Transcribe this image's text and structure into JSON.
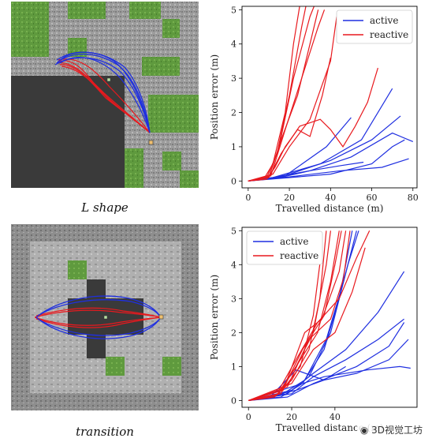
{
  "maps": [
    {
      "caption": "L shape"
    },
    {
      "caption": "transition"
    }
  ],
  "colors": {
    "active": "#1f2fe0",
    "reactive": "#e8191e",
    "grass": "#5f9a3e",
    "gravel": "#9a9a9a",
    "dark": "#3a3a3a"
  },
  "watermark": "3D视觉工坊",
  "chart_data": [
    {
      "type": "line",
      "xlabel": "Travelled distance (m)",
      "ylabel": "Position error (m)",
      "xlim": [
        -3,
        82
      ],
      "ylim": [
        -0.2,
        5.1
      ],
      "xticks": [
        0,
        20,
        40,
        60,
        80
      ],
      "yticks": [
        0,
        1,
        2,
        3,
        4,
        5
      ],
      "legend": {
        "placement": "top-right",
        "entries": [
          "active",
          "reactive"
        ]
      },
      "series": [
        {
          "name": "active",
          "lines": [
            [
              [
                0,
                0
              ],
              [
                10,
                0.08
              ],
              [
                30,
                0.3
              ],
              [
                50,
                0.7
              ],
              [
                70,
                1.4
              ],
              [
                80,
                1.15
              ]
            ],
            [
              [
                0,
                0
              ],
              [
                12,
                0.1
              ],
              [
                35,
                0.5
              ],
              [
                55,
                1.2
              ],
              [
                70,
                2.7
              ]
            ],
            [
              [
                0,
                0
              ],
              [
                15,
                0.1
              ],
              [
                40,
                0.6
              ],
              [
                60,
                1.2
              ],
              [
                74,
                1.9
              ]
            ],
            [
              [
                0,
                0
              ],
              [
                20,
                0.12
              ],
              [
                45,
                0.3
              ],
              [
                65,
                0.4
              ],
              [
                78,
                0.65
              ]
            ],
            [
              [
                0,
                0
              ],
              [
                18,
                0.15
              ],
              [
                38,
                1.0
              ],
              [
                50,
                1.85
              ]
            ],
            [
              [
                0,
                0
              ],
              [
                14,
                0.08
              ],
              [
                30,
                0.3
              ],
              [
                45,
                0.45
              ],
              [
                56,
                0.55
              ]
            ],
            [
              [
                0,
                0
              ],
              [
                20,
                0.1
              ],
              [
                40,
                0.2
              ],
              [
                60,
                0.5
              ],
              [
                70,
                1.0
              ],
              [
                76,
                1.2
              ]
            ]
          ]
        },
        {
          "name": "reactive",
          "lines": [
            [
              [
                0,
                0
              ],
              [
                8,
                0.1
              ],
              [
                12,
                0.5
              ],
              [
                18,
                2.0
              ],
              [
                22,
                4.0
              ],
              [
                25,
                5.1
              ]
            ],
            [
              [
                0,
                0
              ],
              [
                9,
                0.1
              ],
              [
                14,
                0.8
              ],
              [
                20,
                2.5
              ],
              [
                26,
                4.5
              ],
              [
                28,
                5.1
              ]
            ],
            [
              [
                0,
                0
              ],
              [
                10,
                0.12
              ],
              [
                15,
                1.0
              ],
              [
                22,
                3.0
              ],
              [
                30,
                4.8
              ],
              [
                32,
                5.1
              ]
            ],
            [
              [
                0,
                0
              ],
              [
                10,
                0.1
              ],
              [
                16,
                1.2
              ],
              [
                24,
                2.5
              ],
              [
                30,
                4.0
              ],
              [
                34,
                5.0
              ]
            ],
            [
              [
                0,
                0
              ],
              [
                11,
                0.15
              ],
              [
                18,
                1.5
              ],
              [
                26,
                3.0
              ],
              [
                34,
                4.5
              ],
              [
                37,
                5.0
              ]
            ],
            [
              [
                0,
                0
              ],
              [
                12,
                0.2
              ],
              [
                20,
                1.0
              ],
              [
                30,
                1.8
              ],
              [
                40,
                3.5
              ],
              [
                43,
                4.8
              ]
            ],
            [
              [
                0,
                0
              ],
              [
                10,
                0.1
              ],
              [
                16,
                0.8
              ],
              [
                25,
                1.6
              ],
              [
                35,
                1.8
              ],
              [
                40,
                1.5
              ],
              [
                46,
                1.0
              ],
              [
                52,
                1.6
              ],
              [
                58,
                2.3
              ],
              [
                63,
                3.3
              ]
            ],
            [
              [
                0,
                0
              ],
              [
                9,
                0.05
              ],
              [
                13,
                0.4
              ],
              [
                18,
                1.0
              ],
              [
                24,
                1.5
              ],
              [
                30,
                1.3
              ],
              [
                36,
                2.5
              ],
              [
                40,
                3.6
              ]
            ]
          ]
        }
      ]
    },
    {
      "type": "line",
      "xlabel": "Travelled distance (m)",
      "ylabel": "Position error (m)",
      "xlim": [
        -3,
        78
      ],
      "ylim": [
        -0.2,
        5.1
      ],
      "xticks": [
        0,
        20,
        40
      ],
      "yticks": [
        0,
        1,
        2,
        3,
        4,
        5
      ],
      "legend": {
        "placement": "top-left",
        "entries": [
          "active",
          "reactive"
        ]
      },
      "series": [
        {
          "name": "active",
          "lines": [
            [
              [
                0,
                0
              ],
              [
                15,
                0.1
              ],
              [
                25,
                0.5
              ],
              [
                35,
                1.5
              ],
              [
                42,
                3.0
              ],
              [
                48,
                5.0
              ]
            ],
            [
              [
                0,
                0
              ],
              [
                16,
                0.2
              ],
              [
                26,
                0.6
              ],
              [
                36,
                1.8
              ],
              [
                44,
                3.5
              ],
              [
                50,
                5.0
              ]
            ],
            [
              [
                0,
                0
              ],
              [
                18,
                0.2
              ],
              [
                28,
                0.7
              ],
              [
                38,
                2.0
              ],
              [
                46,
                4.0
              ],
              [
                51,
                5.0
              ]
            ],
            [
              [
                0,
                0
              ],
              [
                20,
                0.3
              ],
              [
                30,
                0.8
              ],
              [
                45,
                1.5
              ],
              [
                60,
                2.6
              ],
              [
                72,
                3.8
              ]
            ],
            [
              [
                0,
                0
              ],
              [
                20,
                0.2
              ],
              [
                30,
                0.7
              ],
              [
                45,
                1.2
              ],
              [
                60,
                1.8
              ],
              [
                72,
                2.4
              ]
            ],
            [
              [
                0,
                0
              ],
              [
                22,
                0.3
              ],
              [
                35,
                0.6
              ],
              [
                50,
                0.8
              ],
              [
                65,
                1.2
              ],
              [
                74,
                1.8
              ]
            ],
            [
              [
                0,
                0
              ],
              [
                20,
                0.4
              ],
              [
                35,
                0.7
              ],
              [
                55,
                0.9
              ],
              [
                70,
                1.0
              ],
              [
                75,
                0.95
              ]
            ],
            [
              [
                0,
                0
              ],
              [
                18,
                0.1
              ],
              [
                30,
                0.5
              ],
              [
                50,
                1.0
              ],
              [
                65,
                1.6
              ],
              [
                72,
                2.3
              ]
            ],
            [
              [
                0,
                0
              ],
              [
                10,
                0.1
              ],
              [
                22,
                0.9
              ],
              [
                35,
                0.6
              ],
              [
                45,
                1.0
              ]
            ]
          ]
        },
        {
          "name": "reactive",
          "lines": [
            [
              [
                0,
                0
              ],
              [
                12,
                0.1
              ],
              [
                20,
                0.6
              ],
              [
                28,
                1.5
              ],
              [
                33,
                3.0
              ],
              [
                36,
                5.0
              ]
            ],
            [
              [
                0,
                0
              ],
              [
                13,
                0.15
              ],
              [
                22,
                1.0
              ],
              [
                30,
                2.0
              ],
              [
                36,
                4.0
              ],
              [
                38,
                5.0
              ]
            ],
            [
              [
                0,
                0
              ],
              [
                14,
                0.2
              ],
              [
                24,
                1.2
              ],
              [
                32,
                2.0
              ],
              [
                38,
                3.5
              ],
              [
                42,
                5.0
              ]
            ],
            [
              [
                0,
                0
              ],
              [
                15,
                0.2
              ],
              [
                25,
                1.5
              ],
              [
                35,
                2.5
              ],
              [
                40,
                4.0
              ],
              [
                43,
                5.0
              ]
            ],
            [
              [
                0,
                0
              ],
              [
                16,
                0.3
              ],
              [
                26,
                2.0
              ],
              [
                34,
                2.4
              ],
              [
                42,
                3.8
              ],
              [
                45,
                5.0
              ]
            ],
            [
              [
                0,
                0
              ],
              [
                18,
                0.4
              ],
              [
                28,
                1.8
              ],
              [
                38,
                2.4
              ],
              [
                44,
                3.6
              ],
              [
                47,
                5.0
              ]
            ],
            [
              [
                0,
                0
              ],
              [
                20,
                0.5
              ],
              [
                30,
                1.5
              ],
              [
                40,
                2.0
              ],
              [
                48,
                3.2
              ],
              [
                54,
                4.5
              ]
            ],
            [
              [
                0,
                0
              ],
              [
                14,
                0.3
              ],
              [
                22,
                1.2
              ],
              [
                32,
                2.3
              ],
              [
                42,
                3.0
              ],
              [
                50,
                4.2
              ],
              [
                56,
                5.0
              ]
            ],
            [
              [
                0,
                0
              ],
              [
                12,
                0.1
              ],
              [
                18,
                0.5
              ],
              [
                24,
                1.0
              ],
              [
                30,
                2.5
              ],
              [
                34,
                4.5
              ]
            ]
          ]
        }
      ]
    }
  ]
}
